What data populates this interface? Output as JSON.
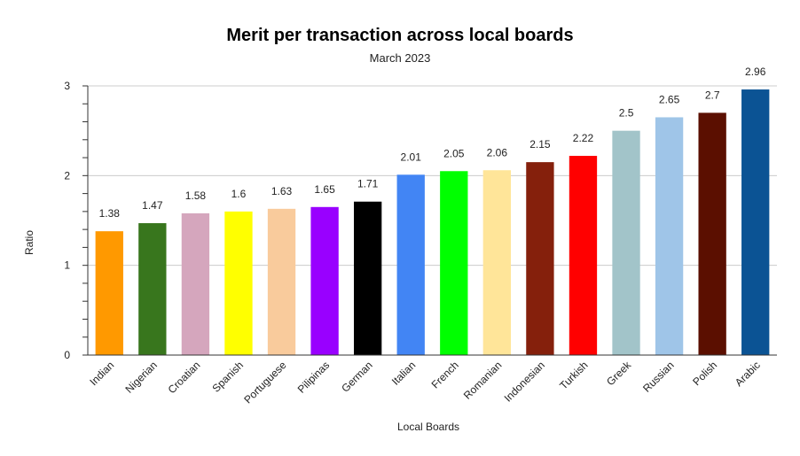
{
  "chart_data": {
    "type": "bar",
    "title": "Merit per transaction across local boards",
    "subtitle": "March 2023",
    "xlabel": "Local Boards",
    "ylabel": "Ratio",
    "ylim": [
      0,
      3
    ],
    "yticks": [
      0,
      1,
      2,
      3
    ],
    "grid": true,
    "legend": "none",
    "categories": [
      "Indian",
      "Nigerian",
      "Croatian",
      "Spanish",
      "Portuguese",
      "Pilipinas",
      "German",
      "Italian",
      "French",
      "Romanian",
      "Indonesian",
      "Turkish",
      "Greek",
      "Russian",
      "Polish",
      "Arabic"
    ],
    "values": [
      1.38,
      1.47,
      1.58,
      1.6,
      1.63,
      1.65,
      1.71,
      2.01,
      2.05,
      2.06,
      2.15,
      2.22,
      2.5,
      2.65,
      2.7,
      2.96
    ],
    "colors": [
      "#ff9900",
      "#38761d",
      "#d5a6bd",
      "#ffff00",
      "#f9cb9c",
      "#9900ff",
      "#000000",
      "#4285f4",
      "#00ff00",
      "#ffe599",
      "#85200c",
      "#ff0000",
      "#a2c4c9",
      "#9fc5e8",
      "#5b0f00",
      "#0b5394"
    ]
  }
}
